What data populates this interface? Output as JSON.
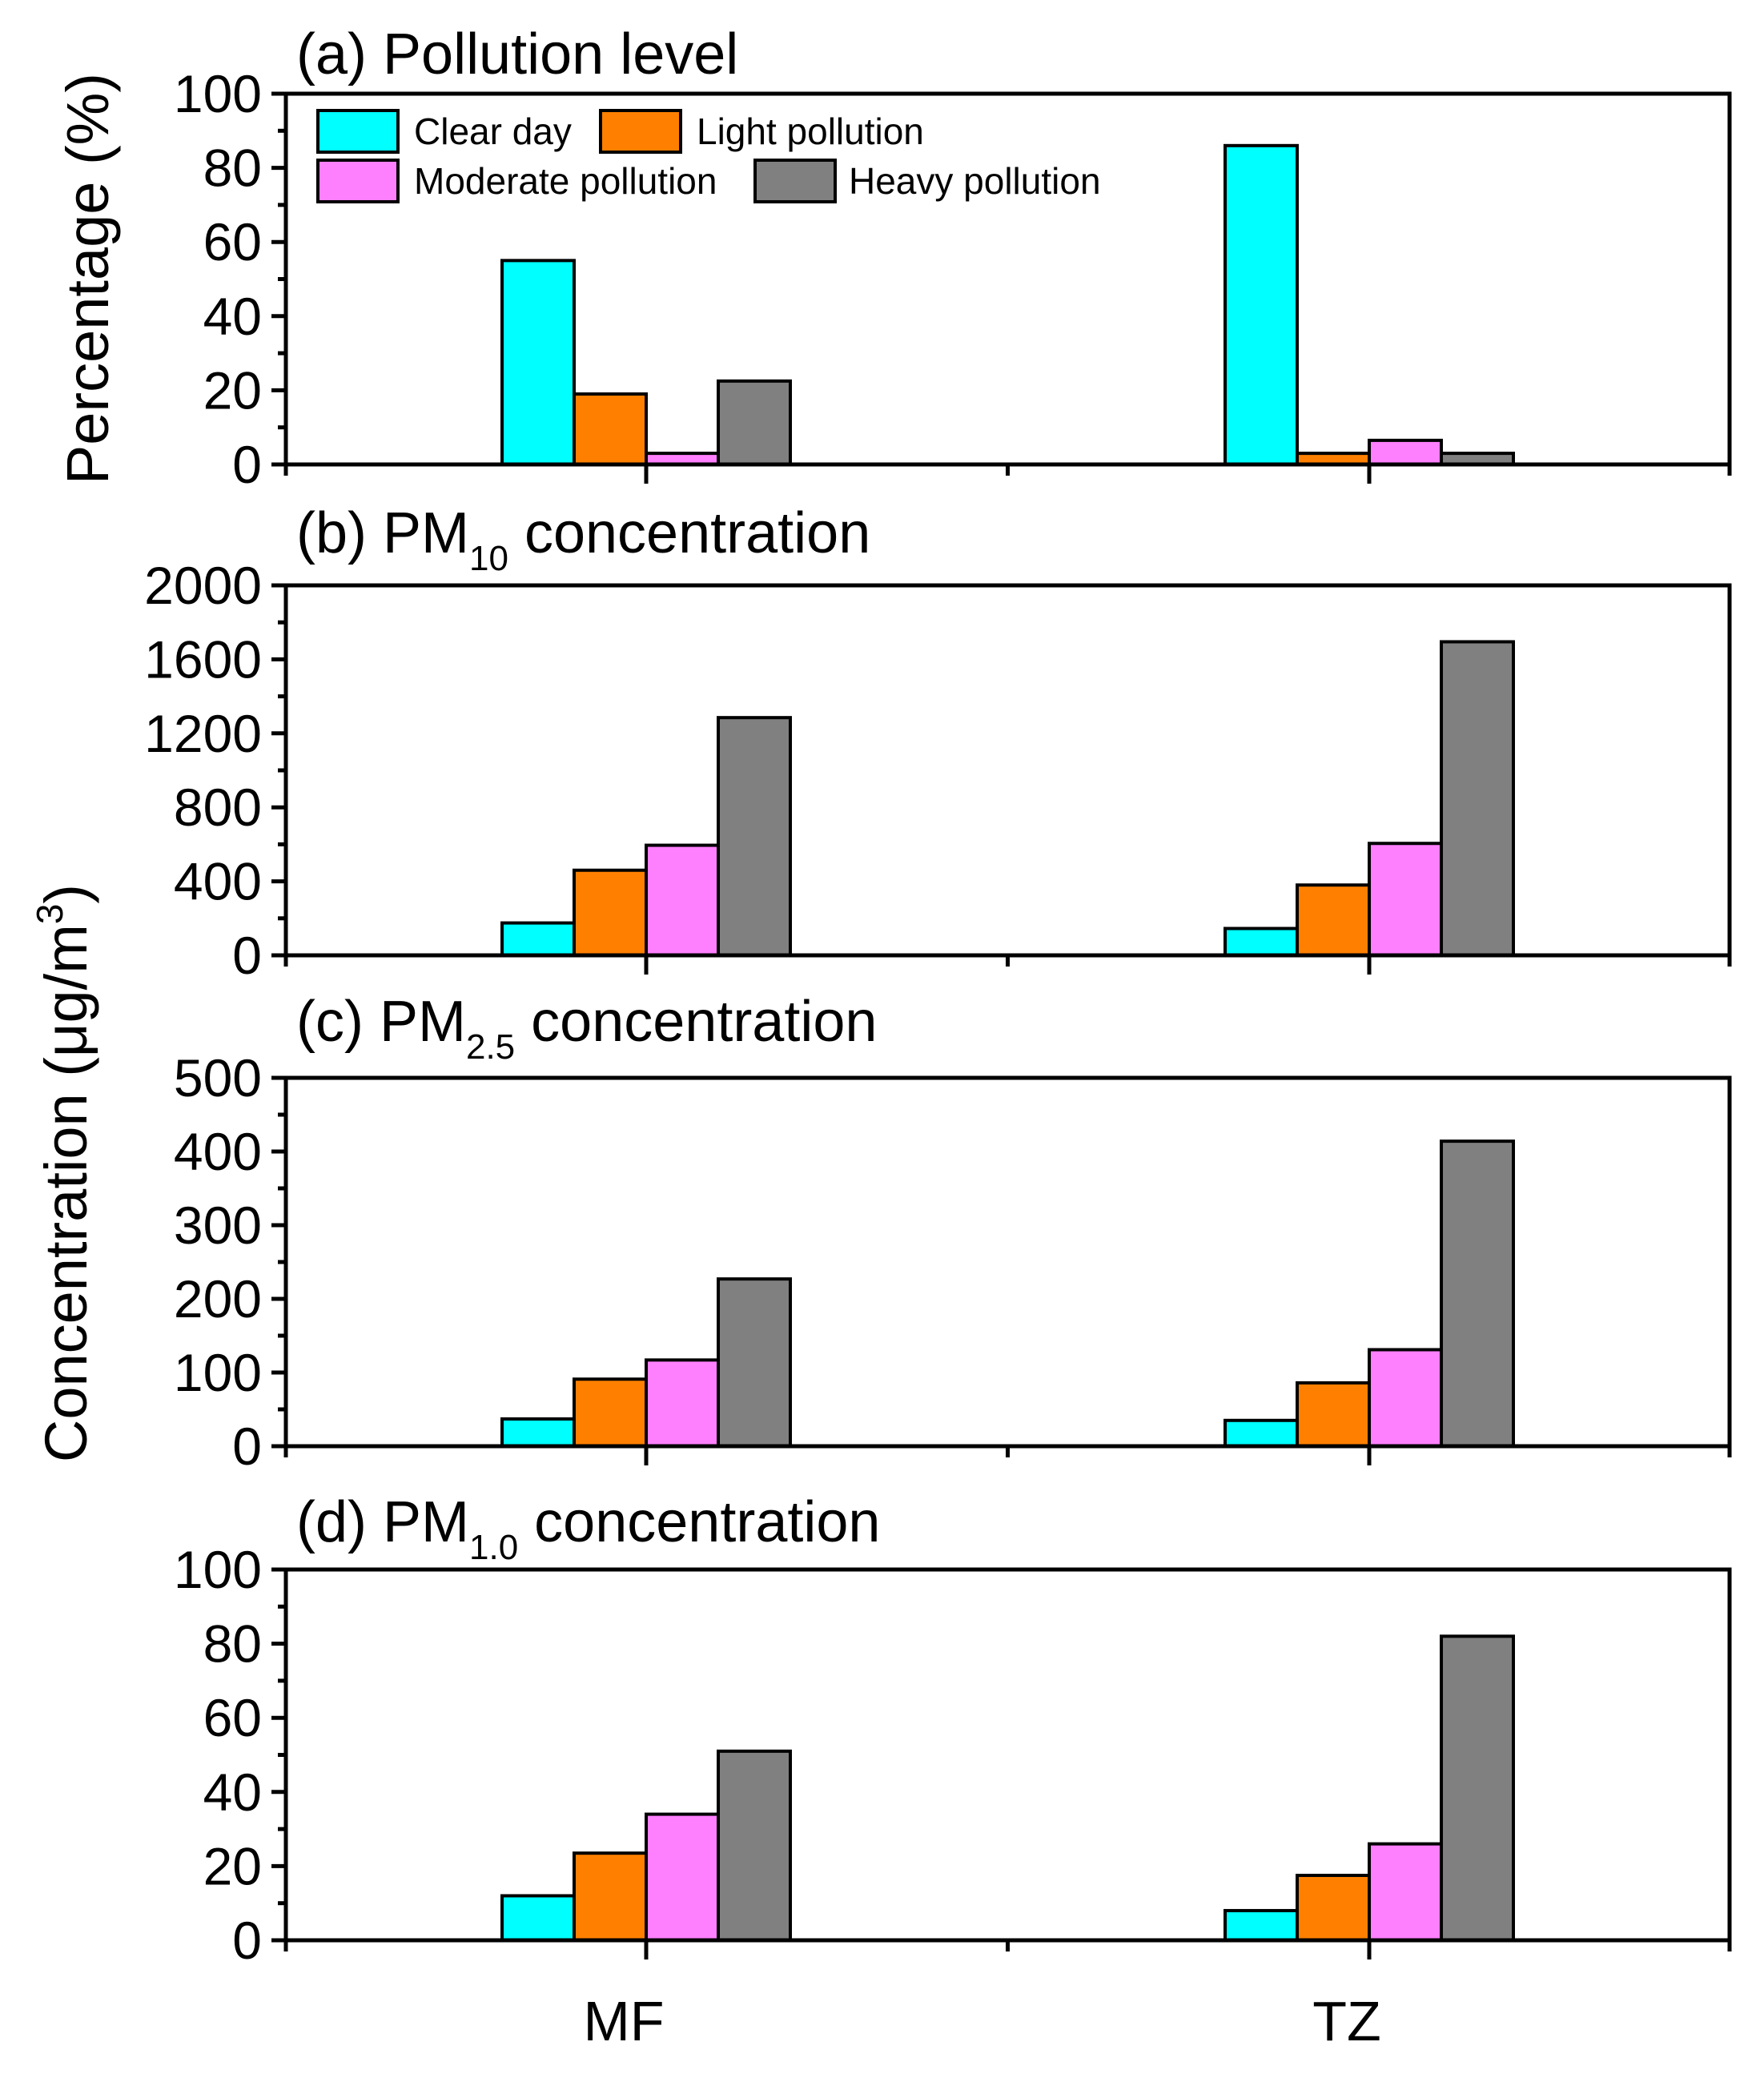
{
  "colors": {
    "clear_day": "#00FFFF",
    "light_pollution": "#FF8000",
    "moderate_pollution": "#FF80FF",
    "heavy_pollution": "#808080"
  },
  "legend": [
    {
      "key": "clear_day",
      "label": "Clear day"
    },
    {
      "key": "light_pollution",
      "label": "Light pollution"
    },
    {
      "key": "moderate_pollution",
      "label": "Moderate pollution"
    },
    {
      "key": "heavy_pollution",
      "label": "Heavy pollution"
    }
  ],
  "axis_titles": {
    "top": "Percentage (%)",
    "bottom_main": "Concentration (μg/m",
    "bottom_sup": "3",
    "bottom_close": ")"
  },
  "chart_data": [
    {
      "type": "bar",
      "title_prefix": "(a)",
      "title_main": "Pollution level",
      "title_sub": "",
      "title_suffix": "",
      "ylabel": "Percentage (%)",
      "ylim": [
        0,
        100
      ],
      "yticks": [
        0,
        20,
        40,
        60,
        80,
        100
      ],
      "categories": [
        "MF",
        "TZ"
      ],
      "series": [
        {
          "name": "Clear day",
          "values": [
            55,
            86
          ]
        },
        {
          "name": "Light pollution",
          "values": [
            19,
            3
          ]
        },
        {
          "name": "Moderate pollution",
          "values": [
            3,
            6.5
          ]
        },
        {
          "name": "Heavy pollution",
          "values": [
            22.5,
            3
          ]
        }
      ]
    },
    {
      "type": "bar",
      "title_prefix": "(b)",
      "title_main": "PM",
      "title_sub": "10",
      "title_suffix": "concentration",
      "ylabel": "Concentration (μg/m3)",
      "ylim": [
        0,
        2000
      ],
      "yticks": [
        0,
        400,
        800,
        1200,
        1600,
        2000
      ],
      "categories": [
        "MF",
        "TZ"
      ],
      "series": [
        {
          "name": "Clear day",
          "values": [
            175,
            145
          ]
        },
        {
          "name": "Light pollution",
          "values": [
            460,
            380
          ]
        },
        {
          "name": "Moderate pollution",
          "values": [
            595,
            605
          ]
        },
        {
          "name": "Heavy pollution",
          "values": [
            1285,
            1695
          ]
        }
      ]
    },
    {
      "type": "bar",
      "title_prefix": "(c)",
      "title_main": "PM",
      "title_sub": "2.5",
      "title_suffix": "concentration",
      "ylabel": "Concentration (μg/m3)",
      "ylim": [
        0,
        500
      ],
      "yticks": [
        0,
        100,
        200,
        300,
        400,
        500
      ],
      "categories": [
        "MF",
        "TZ"
      ],
      "series": [
        {
          "name": "Clear day",
          "values": [
            37,
            35
          ]
        },
        {
          "name": "Light pollution",
          "values": [
            91,
            86
          ]
        },
        {
          "name": "Moderate pollution",
          "values": [
            117,
            131
          ]
        },
        {
          "name": "Heavy pollution",
          "values": [
            227,
            414
          ]
        }
      ]
    },
    {
      "type": "bar",
      "title_prefix": "(d)",
      "title_main": "PM",
      "title_sub": "1.0",
      "title_suffix": "concentration",
      "ylabel": "Concentration (μg/m3)",
      "ylim": [
        0,
        100
      ],
      "yticks": [
        0,
        20,
        40,
        60,
        80,
        100
      ],
      "categories": [
        "MF",
        "TZ"
      ],
      "series": [
        {
          "name": "Clear day",
          "values": [
            12,
            8
          ]
        },
        {
          "name": "Light pollution",
          "values": [
            23.5,
            17.5
          ]
        },
        {
          "name": "Moderate pollution",
          "values": [
            34,
            26
          ]
        },
        {
          "name": "Heavy pollution",
          "values": [
            51,
            82
          ]
        }
      ]
    }
  ]
}
